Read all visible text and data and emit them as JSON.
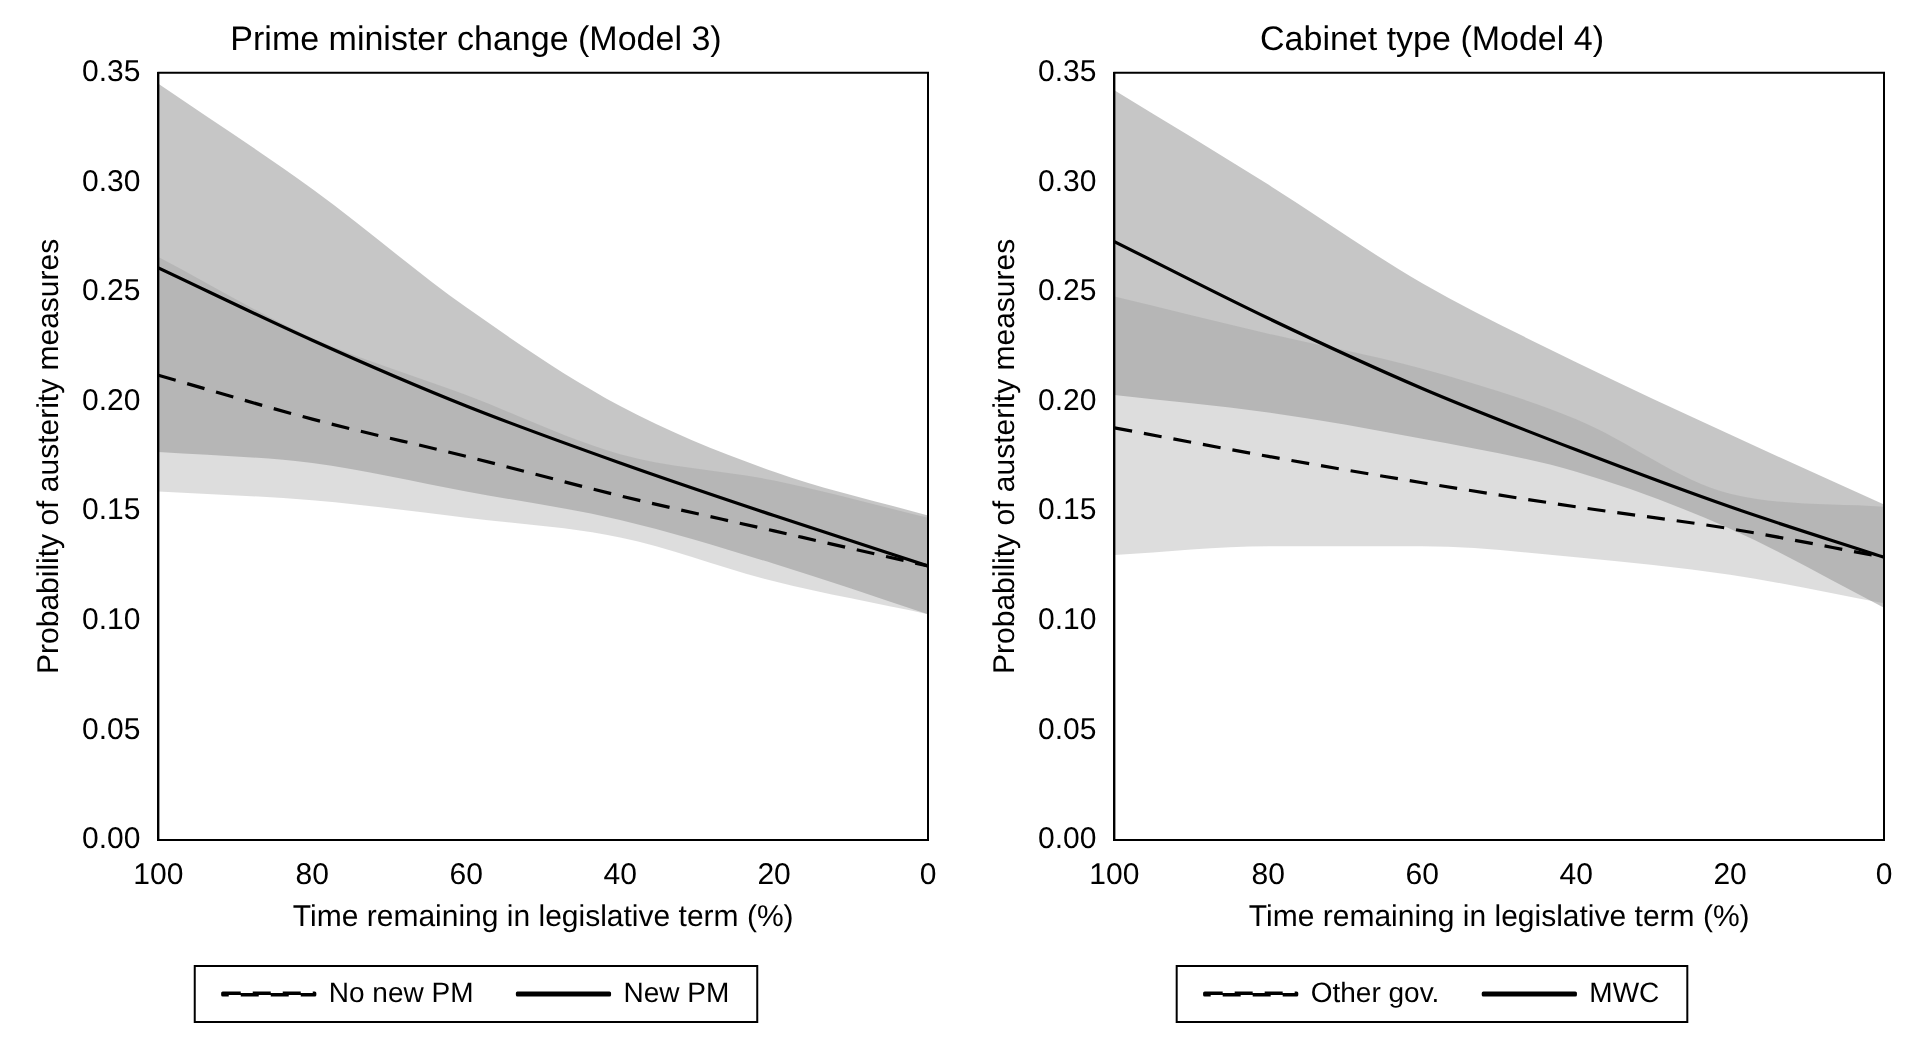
{
  "chart_data": [
    {
      "type": "line",
      "title": "Prime minister change (Model 3)",
      "xlabel": "Time remaining in legislative term (%)",
      "ylabel": "Probability of austerity measures",
      "x": [
        100,
        80,
        60,
        40,
        20,
        0
      ],
      "xlim": [
        100,
        0
      ],
      "xticks": [
        100,
        80,
        60,
        40,
        20,
        0
      ],
      "ylim": [
        0,
        0.35
      ],
      "yticks": [
        {
          "value": 0,
          "label": "0.00"
        },
        {
          "value": 0.05,
          "label": "0.05"
        },
        {
          "value": 0.1,
          "label": "0.10"
        },
        {
          "value": 0.15,
          "label": "0.15"
        },
        {
          "value": 0.2,
          "label": "0.20"
        },
        {
          "value": 0.25,
          "label": "0.25"
        },
        {
          "value": 0.3,
          "label": "0.30"
        },
        {
          "value": 0.35,
          "label": "0.35"
        }
      ],
      "grid": false,
      "legend": "bottom",
      "marker": "none",
      "series": [
        {
          "name": "No new PM",
          "color": "#000000",
          "line_style": "dashed",
          "values": [
            0.212,
            0.192,
            0.175,
            0.157,
            0.141,
            0.125
          ],
          "lower": [
            0.159,
            0.155,
            0.147,
            0.138,
            0.118,
            0.103
          ],
          "upper": [
            0.266,
            0.229,
            0.203,
            0.176,
            0.164,
            0.147
          ]
        },
        {
          "name": "New PM",
          "color": "#000000",
          "line_style": "solid",
          "values": [
            0.261,
            0.228,
            0.198,
            0.172,
            0.148,
            0.125
          ],
          "lower": [
            0.177,
            0.172,
            0.159,
            0.146,
            0.126,
            0.103
          ],
          "upper": [
            0.345,
            0.297,
            0.243,
            0.198,
            0.168,
            0.148
          ]
        }
      ]
    },
    {
      "type": "line",
      "title": "Cabinet type (Model 4)",
      "xlabel": "Time remaining in legislative term (%)",
      "ylabel": "Probability of austerity measures",
      "x": [
        100,
        80,
        60,
        40,
        20,
        0
      ],
      "xlim": [
        100,
        0
      ],
      "xticks": [
        100,
        80,
        60,
        40,
        20,
        0
      ],
      "ylim": [
        0,
        0.35
      ],
      "yticks": [
        {
          "value": 0,
          "label": "0.00"
        },
        {
          "value": 0.05,
          "label": "0.05"
        },
        {
          "value": 0.1,
          "label": "0.10"
        },
        {
          "value": 0.15,
          "label": "0.15"
        },
        {
          "value": 0.2,
          "label": "0.20"
        },
        {
          "value": 0.25,
          "label": "0.25"
        },
        {
          "value": 0.3,
          "label": "0.30"
        },
        {
          "value": 0.35,
          "label": "0.35"
        }
      ],
      "grid": false,
      "legend": "bottom",
      "marker": "none",
      "series": [
        {
          "name": "Other gov.",
          "color": "#000000",
          "line_style": "dashed",
          "values": [
            0.188,
            0.175,
            0.163,
            0.152,
            0.142,
            0.129
          ],
          "lower": [
            0.13,
            0.134,
            0.134,
            0.129,
            0.121,
            0.108
          ],
          "upper": [
            0.248,
            0.231,
            0.215,
            0.192,
            0.158,
            0.152
          ]
        },
        {
          "name": "MWC",
          "color": "#000000",
          "line_style": "solid",
          "values": [
            0.273,
            0.238,
            0.206,
            0.178,
            0.152,
            0.129
          ],
          "lower": [
            0.203,
            0.195,
            0.183,
            0.168,
            0.142,
            0.106
          ],
          "upper": [
            0.342,
            0.299,
            0.254,
            0.218,
            0.185,
            0.153
          ]
        }
      ]
    }
  ]
}
